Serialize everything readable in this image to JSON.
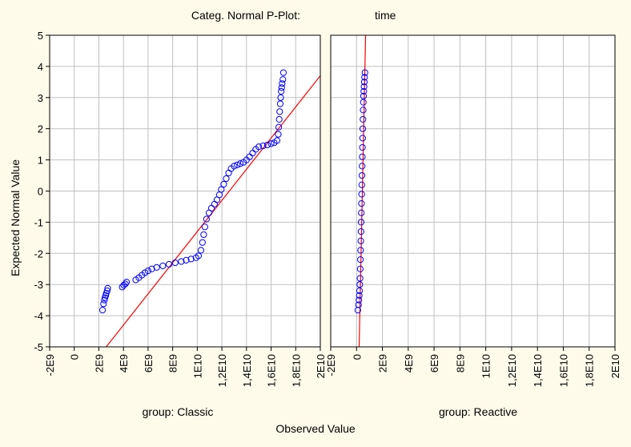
{
  "chart_data": {
    "type": "scatter",
    "title": "Categ. Normal P-Plot:",
    "title_variable": "time",
    "xlabel": "Observed Value",
    "ylabel": "Expected Normal Value",
    "background": "#fffbea",
    "marker_color": "#0000ff",
    "line_color": "#ff0000",
    "grid_color": "#c0c0c0",
    "grid": true,
    "panels": [
      {
        "label": "group: Classic",
        "xlim": [
          -2000000000,
          20000000000
        ],
        "ylim": [
          -5,
          5
        ],
        "xticks": [
          "-2E9",
          "0",
          "2E9",
          "4E9",
          "6E9",
          "8E9",
          "1E10",
          "1,2E10",
          "1,4E10",
          "1,6E10",
          "1,8E10",
          "2E10"
        ],
        "yticks": [
          "5",
          "4",
          "3",
          "2",
          "1",
          "0",
          "-1",
          "-2",
          "-3",
          "-4",
          "-5"
        ],
        "fit_line": [
          [
            2600000000,
            -5
          ],
          [
            20000000000,
            3.7
          ]
        ],
        "points": [
          [
            2300000000,
            -3.82
          ],
          [
            2380000000,
            -3.62
          ],
          [
            2450000000,
            -3.5
          ],
          [
            2500000000,
            -3.42
          ],
          [
            2560000000,
            -3.35
          ],
          [
            2600000000,
            -3.28
          ],
          [
            2680000000,
            -3.2
          ],
          [
            2720000000,
            -3.12
          ],
          [
            3900000000,
            -3.08
          ],
          [
            4020000000,
            -3.02
          ],
          [
            4150000000,
            -2.98
          ],
          [
            4250000000,
            -2.92
          ],
          [
            5000000000,
            -2.85
          ],
          [
            5250000000,
            -2.78
          ],
          [
            5500000000,
            -2.7
          ],
          [
            5750000000,
            -2.62
          ],
          [
            6000000000,
            -2.56
          ],
          [
            6300000000,
            -2.5
          ],
          [
            6700000000,
            -2.45
          ],
          [
            7200000000,
            -2.4
          ],
          [
            7700000000,
            -2.35
          ],
          [
            8200000000,
            -2.3
          ],
          [
            8700000000,
            -2.26
          ],
          [
            9100000000,
            -2.22
          ],
          [
            9500000000,
            -2.18
          ],
          [
            9900000000,
            -2.14
          ],
          [
            10100000000,
            -2.08
          ],
          [
            10300000000,
            -1.9
          ],
          [
            10420000000,
            -1.65
          ],
          [
            10520000000,
            -1.4
          ],
          [
            10620000000,
            -1.15
          ],
          [
            10750000000,
            -0.9
          ],
          [
            10950000000,
            -0.7
          ],
          [
            11150000000,
            -0.55
          ],
          [
            11400000000,
            -0.42
          ],
          [
            11600000000,
            -0.28
          ],
          [
            11800000000,
            -0.12
          ],
          [
            11950000000,
            0.05
          ],
          [
            12150000000,
            0.22
          ],
          [
            12350000000,
            0.4
          ],
          [
            12550000000,
            0.58
          ],
          [
            12750000000,
            0.72
          ],
          [
            13000000000,
            0.8
          ],
          [
            13250000000,
            0.84
          ],
          [
            13500000000,
            0.88
          ],
          [
            13750000000,
            0.92
          ],
          [
            14000000000,
            1.0
          ],
          [
            14250000000,
            1.1
          ],
          [
            14500000000,
            1.22
          ],
          [
            14750000000,
            1.34
          ],
          [
            15000000000,
            1.42
          ],
          [
            15350000000,
            1.45
          ],
          [
            15700000000,
            1.48
          ],
          [
            16000000000,
            1.52
          ],
          [
            16250000000,
            1.55
          ],
          [
            16480000000,
            1.62
          ],
          [
            16580000000,
            1.82
          ],
          [
            16620000000,
            2.05
          ],
          [
            16660000000,
            2.3
          ],
          [
            16700000000,
            2.55
          ],
          [
            16740000000,
            2.8
          ],
          [
            16780000000,
            3.0
          ],
          [
            16820000000,
            3.2
          ],
          [
            16860000000,
            3.32
          ],
          [
            16900000000,
            3.45
          ],
          [
            16960000000,
            3.58
          ],
          [
            17000000000,
            3.8
          ]
        ]
      },
      {
        "label": "group: Reactive",
        "xlim": [
          -2000000000,
          20000000000
        ],
        "ylim": [
          -5,
          5
        ],
        "xticks": [
          "-2E9",
          "0",
          "2E9",
          "4E9",
          "6E9",
          "8E9",
          "1E10",
          "1,2E10",
          "1,4E10",
          "1,6E10",
          "1,8E10",
          "2E10"
        ],
        "yticks": [],
        "fit_line": [
          [
            200000000,
            -5
          ],
          [
            700000000,
            5
          ]
        ],
        "points": [
          [
            100000000,
            -3.82
          ],
          [
            150000000,
            -3.65
          ],
          [
            180000000,
            -3.5
          ],
          [
            210000000,
            -3.35
          ],
          [
            230000000,
            -3.2
          ],
          [
            250000000,
            -3.0
          ],
          [
            270000000,
            -2.8
          ],
          [
            285000000,
            -2.5
          ],
          [
            300000000,
            -2.2
          ],
          [
            315000000,
            -1.9
          ],
          [
            330000000,
            -1.6
          ],
          [
            345000000,
            -1.3
          ],
          [
            355000000,
            -1.0
          ],
          [
            370000000,
            -0.7
          ],
          [
            380000000,
            -0.4
          ],
          [
            395000000,
            -0.1
          ],
          [
            405000000,
            0.2
          ],
          [
            420000000,
            0.5
          ],
          [
            430000000,
            0.8
          ],
          [
            445000000,
            1.1
          ],
          [
            455000000,
            1.4
          ],
          [
            470000000,
            1.7
          ],
          [
            480000000,
            2.0
          ],
          [
            495000000,
            2.3
          ],
          [
            510000000,
            2.6
          ],
          [
            525000000,
            2.85
          ],
          [
            540000000,
            3.05
          ],
          [
            560000000,
            3.2
          ],
          [
            580000000,
            3.35
          ],
          [
            600000000,
            3.5
          ],
          [
            620000000,
            3.65
          ],
          [
            650000000,
            3.8
          ]
        ]
      }
    ]
  }
}
